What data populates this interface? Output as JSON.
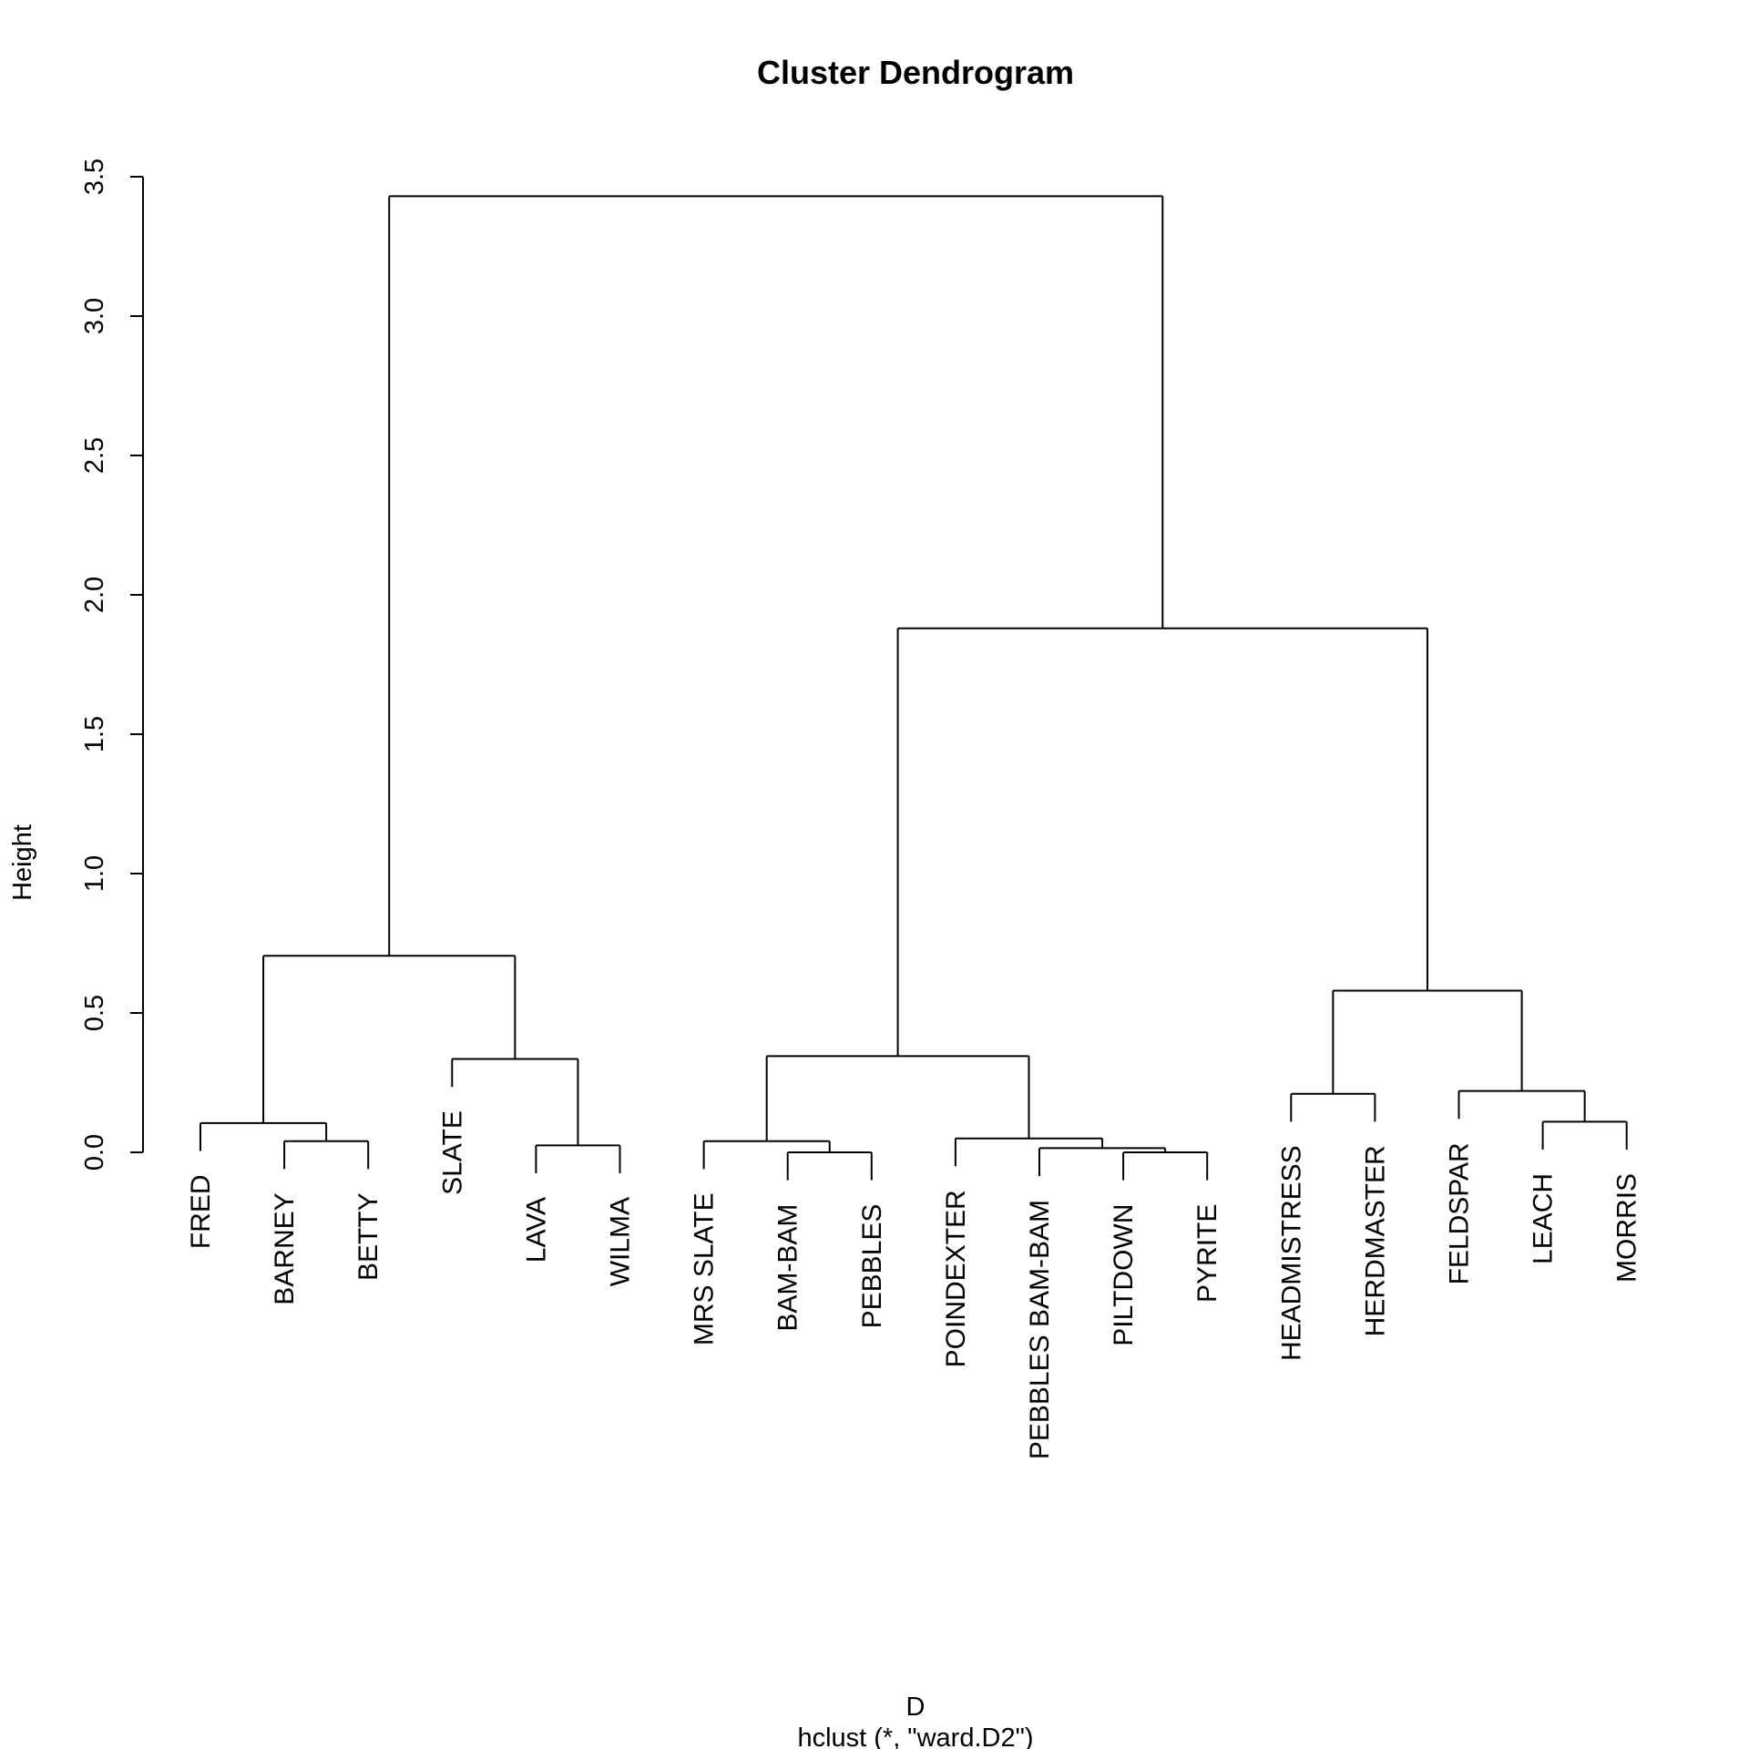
{
  "chart_data": {
    "type": "dendrogram",
    "title": "Cluster Dendrogram",
    "ylabel": "Height",
    "xlabel": "D",
    "sublabel": "hclust (*, \"ward.D2\")",
    "ylim": [
      0,
      3.5
    ],
    "yticks": [
      0.0,
      0.5,
      1.0,
      1.5,
      2.0,
      2.5,
      3.0,
      3.5
    ],
    "ytick_labels": [
      "0.0",
      "0.5",
      "1.0",
      "1.5",
      "2.0",
      "2.5",
      "3.0",
      "3.5"
    ],
    "leaves": [
      "FRED",
      "BARNEY",
      "BETTY",
      "SLATE",
      "LAVA",
      "WILMA",
      "MRS SLATE",
      "BAM-BAM",
      "PEBBLES",
      "POINDEXTER",
      "PEBBLES BAM-BAM",
      "PILTDOWN",
      "PYRITE",
      "HEADMISTRESS",
      "HERDMASTER",
      "FELDSPAR",
      "LEACH",
      "MORRIS"
    ],
    "merges": [
      {
        "left": "BARNEY",
        "right": "BETTY",
        "height": 0.04
      },
      {
        "left": "FRED",
        "right": 0,
        "height": 0.105
      },
      {
        "left": "LAVA",
        "right": "WILMA",
        "height": 0.025
      },
      {
        "left": "SLATE",
        "right": 2,
        "height": 0.335
      },
      {
        "left": 1,
        "right": 3,
        "height": 0.705
      },
      {
        "left": "BAM-BAM",
        "right": "PEBBLES",
        "height": 0.0
      },
      {
        "left": "MRS SLATE",
        "right": 5,
        "height": 0.04
      },
      {
        "left": "PILTDOWN",
        "right": "PYRITE",
        "height": 0.0
      },
      {
        "left": "PEBBLES BAM-BAM",
        "right": 7,
        "height": 0.015
      },
      {
        "left": "POINDEXTER",
        "right": 8,
        "height": 0.05
      },
      {
        "left": 6,
        "right": 9,
        "height": 0.345
      },
      {
        "left": "HEADMISTRESS",
        "right": "HERDMASTER",
        "height": 0.21
      },
      {
        "left": "LEACH",
        "right": "MORRIS",
        "height": 0.11
      },
      {
        "left": "FELDSPAR",
        "right": 12,
        "height": 0.22
      },
      {
        "left": 11,
        "right": 13,
        "height": 0.58
      },
      {
        "left": 10,
        "right": 14,
        "height": 1.88
      },
      {
        "left": 4,
        "right": 15,
        "height": 3.43
      }
    ],
    "hang": 0.1,
    "grid": false,
    "legend": "none"
  }
}
